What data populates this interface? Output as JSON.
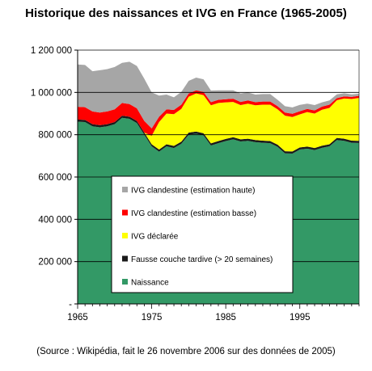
{
  "chart_data": {
    "type": "area",
    "title": "Historique des naissances et IVG en France (1965-2005)",
    "source": "(Source : Wikipédia, fait le 26 novembre 2006 sur des données de 2005)",
    "xlim": [
      1965,
      2003
    ],
    "ylim": [
      0,
      1200000
    ],
    "x_ticks": [
      1965,
      1975,
      1985,
      1995
    ],
    "y_ticks": [
      0,
      200000,
      400000,
      600000,
      800000,
      1000000,
      1200000
    ],
    "y_tick_labels": [
      "-",
      "200 000",
      "400 000",
      "600 000",
      "800 000",
      "1 000 000",
      "1 200 000"
    ],
    "stacked": true,
    "grid": "horizontal",
    "legend_position": "center",
    "x": [
      1965,
      1966,
      1967,
      1968,
      1969,
      1970,
      1971,
      1972,
      1973,
      1974,
      1975,
      1976,
      1977,
      1978,
      1979,
      1980,
      1981,
      1982,
      1983,
      1984,
      1985,
      1986,
      1987,
      1988,
      1989,
      1990,
      1991,
      1992,
      1993,
      1994,
      1995,
      1996,
      1997,
      1998,
      1999,
      2000,
      2001,
      2002,
      2003
    ],
    "series": [
      {
        "name": "Naissance",
        "color": "#339966",
        "values": [
          862000,
          860000,
          840000,
          835000,
          840000,
          850000,
          880000,
          875000,
          855000,
          800000,
          745000,
          720000,
          745000,
          737000,
          757000,
          800000,
          805000,
          797000,
          749000,
          760000,
          770000,
          778000,
          768000,
          771000,
          765000,
          762000,
          760000,
          743000,
          712000,
          711000,
          730000,
          734000,
          727000,
          738000,
          745000,
          775000,
          771000,
          762000,
          761000
        ]
      },
      {
        "name": "Fausse couche tardive (> 20 semaines)",
        "color": "#1a1a1a",
        "values": [
          10000,
          10000,
          10000,
          10000,
          10000,
          10000,
          10000,
          10000,
          10000,
          10000,
          10000,
          10000,
          10000,
          10000,
          10000,
          10000,
          10000,
          10000,
          10000,
          10000,
          10000,
          10000,
          10000,
          10000,
          10000,
          10000,
          10000,
          10000,
          10000,
          10000,
          10000,
          10000,
          10000,
          10000,
          10000,
          10000,
          10000,
          10000,
          10000
        ]
      },
      {
        "name": "IVG déclarée",
        "color": "#ffff00",
        "values": [
          0,
          0,
          0,
          0,
          0,
          0,
          0,
          0,
          0,
          0,
          40000,
          130000,
          145000,
          150000,
          155000,
          170000,
          180000,
          180000,
          180000,
          180000,
          173000,
          167000,
          162000,
          166000,
          164000,
          170000,
          172000,
          167000,
          168000,
          163000,
          156000,
          163000,
          163000,
          170000,
          172000,
          178000,
          190000,
          197000,
          203000
        ]
      },
      {
        "name": "IVG clandestine (estimation basse)",
        "color": "#ff0000",
        "values": [
          60000,
          60000,
          60000,
          60000,
          60000,
          60000,
          60000,
          60000,
          60000,
          55000,
          35000,
          25000,
          20000,
          20000,
          20000,
          15000,
          15000,
          15000,
          15000,
          15000,
          15000,
          15000,
          15000,
          15000,
          15000,
          15000,
          15000,
          15000,
          15000,
          15000,
          15000,
          15000,
          15000,
          15000,
          15000,
          10000,
          10000,
          10000,
          10000
        ]
      },
      {
        "name": "IVG clandestine (estimation haute)",
        "color": "#a6a6a6",
        "values": [
          200000,
          200000,
          190000,
          200000,
          200000,
          200000,
          190000,
          200000,
          200000,
          200000,
          170000,
          100000,
          70000,
          60000,
          60000,
          60000,
          60000,
          60000,
          55000,
          45000,
          42000,
          40000,
          40000,
          38000,
          36000,
          35000,
          35000,
          30000,
          30000,
          30000,
          30000,
          25000,
          25000,
          20000,
          20000,
          18000,
          15000,
          12000,
          10000
        ]
      }
    ],
    "legend_order": [
      "IVG clandestine (estimation haute)",
      "IVG clandestine (estimation basse)",
      "IVG déclarée",
      "Fausse couche tardive (> 20 semaines)",
      "Naissance"
    ]
  }
}
